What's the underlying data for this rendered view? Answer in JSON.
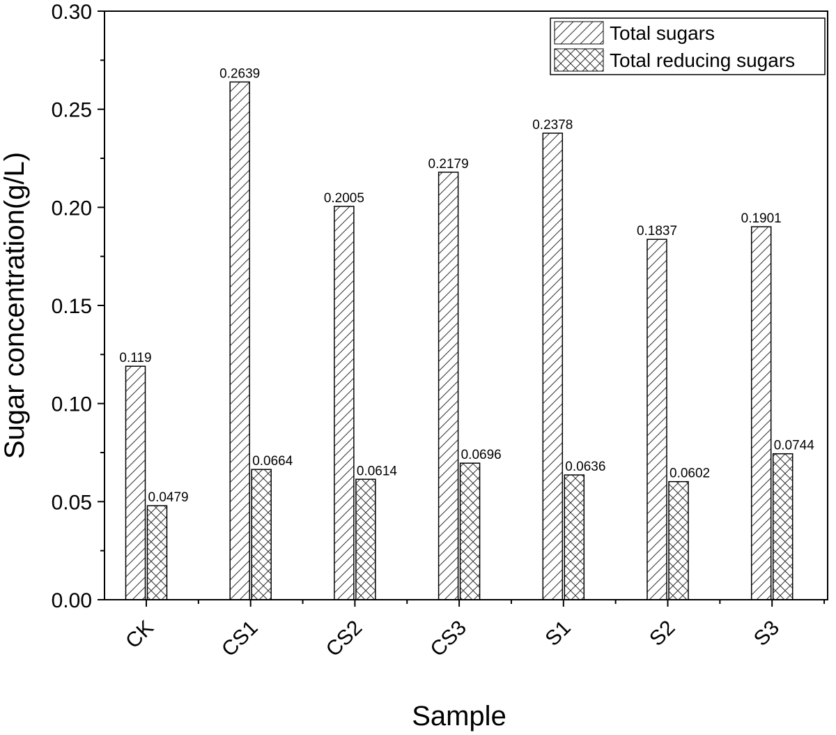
{
  "chart_data": {
    "type": "bar",
    "title": "",
    "xlabel": "Sample",
    "ylabel": "Sugar concentration(g/L)",
    "ylim": [
      0,
      0.3
    ],
    "yticks": [
      "0.00",
      "0.05",
      "0.10",
      "0.15",
      "0.20",
      "0.25",
      "0.30"
    ],
    "categories": [
      "CK",
      "CS1",
      "CS2",
      "CS3",
      "S1",
      "S2",
      "S3"
    ],
    "series": [
      {
        "name": "Total sugars",
        "pattern": "diagonal-hatch",
        "values": [
          0.119,
          0.2639,
          0.2005,
          0.2179,
          0.2378,
          0.1837,
          0.1901
        ],
        "labels": [
          "0.119",
          "0.2639",
          "0.2005",
          "0.2179",
          "0.2378",
          "0.1837",
          "0.1901"
        ]
      },
      {
        "name": "Total reducing sugars",
        "pattern": "cross-hatch",
        "values": [
          0.0479,
          0.0664,
          0.0614,
          0.0696,
          0.0636,
          0.0602,
          0.0744
        ],
        "labels": [
          "0.0479",
          "0.0664",
          "0.0614",
          "0.0696",
          "0.0636",
          "0.0602",
          "0.0744"
        ]
      }
    ],
    "grid": false,
    "legend_position": "top-right"
  },
  "colors": {
    "bar_fill": "#ffffff",
    "bar_stroke": "#000000",
    "hatch": "#333333",
    "axis": "#000000"
  }
}
